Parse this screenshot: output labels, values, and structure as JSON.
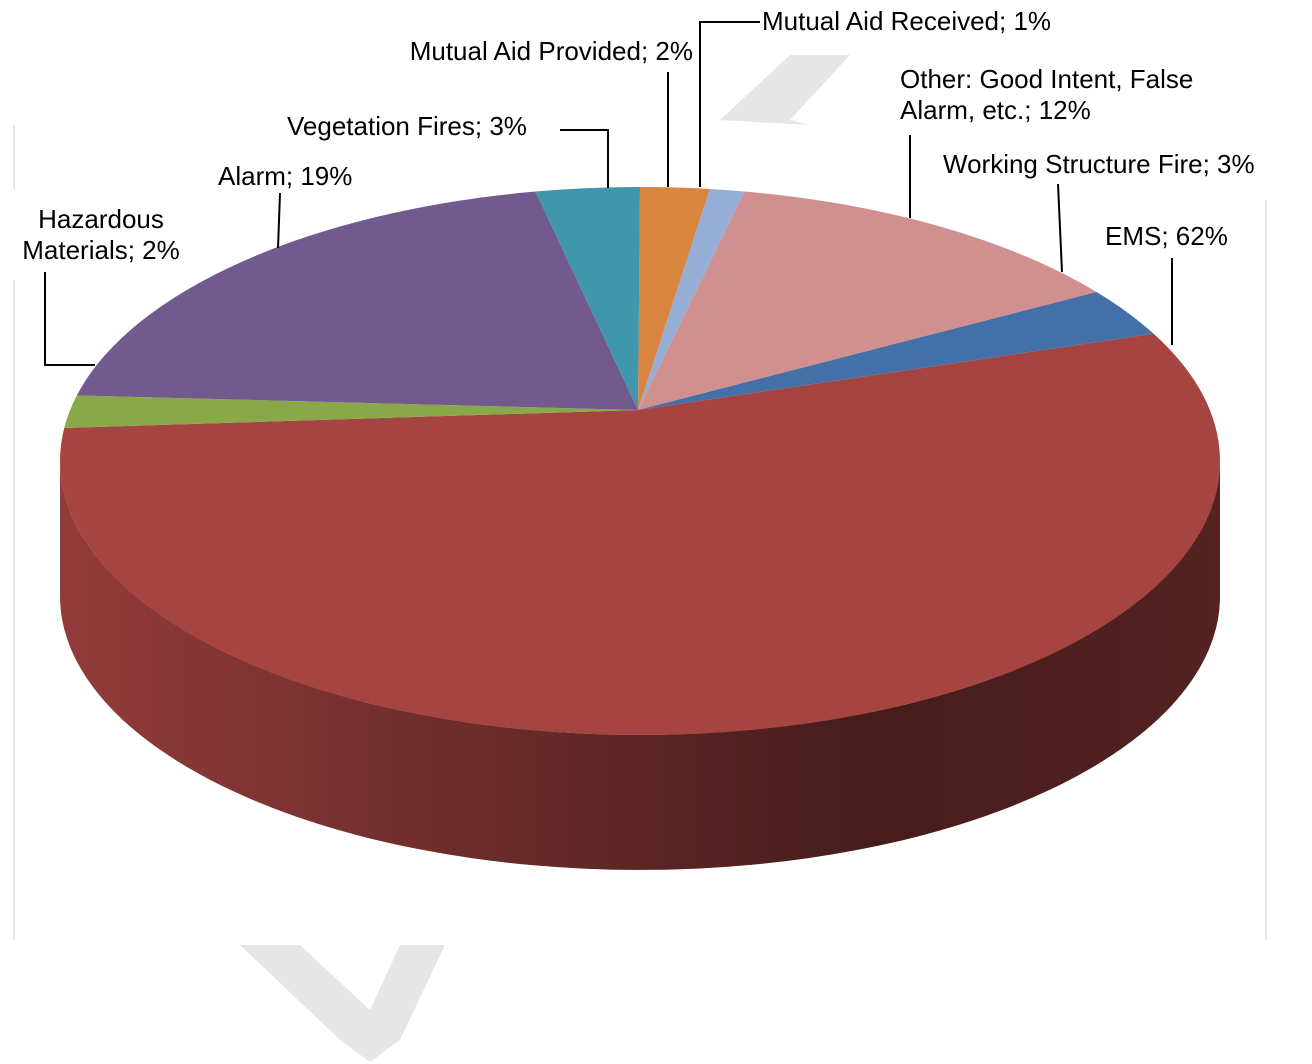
{
  "chart_data": {
    "type": "pie",
    "3d": true,
    "values": [
      2,
      1,
      12,
      3,
      62,
      2,
      19,
      3
    ],
    "value_labels": [
      "Mutual Aid Provided; 2%",
      "Mutual Aid Received; 1%",
      "Other: Good Intent, False Alarm, etc.; 12%",
      "Working Structure Fire; 3%",
      "EMS; 62%",
      "Hazardous Materials; 2%",
      "Alarm; 19%",
      "Vegetation Fires; 3%"
    ],
    "colors": [
      "#d9843f",
      "#95aed6",
      "#d09090",
      "#4470a8",
      "#a64442",
      "#89a84a",
      "#72598e",
      "#4096ab"
    ]
  }
}
